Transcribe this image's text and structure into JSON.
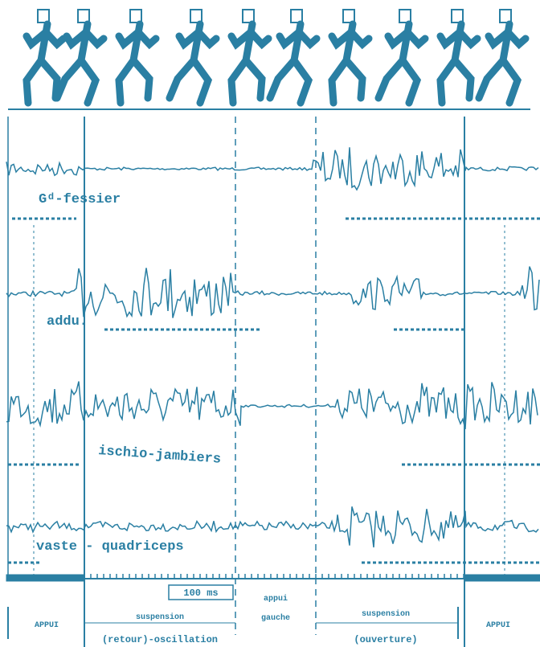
{
  "traces": [
    {
      "label": "Gᵈ-fessier"
    },
    {
      "label": "addu."
    },
    {
      "label": "ischio-jambiers"
    },
    {
      "label": "vaste - quadriceps"
    }
  ],
  "scale": "100 ms",
  "phases": {
    "left": "APPUI",
    "suspension_1": "suspension",
    "oscillation": "(retour)-oscillation",
    "appui_1": "appui",
    "appui_2": "gauche",
    "suspension_2": "suspension",
    "ouverture": "(ouverture)",
    "right": "APPUI"
  }
}
